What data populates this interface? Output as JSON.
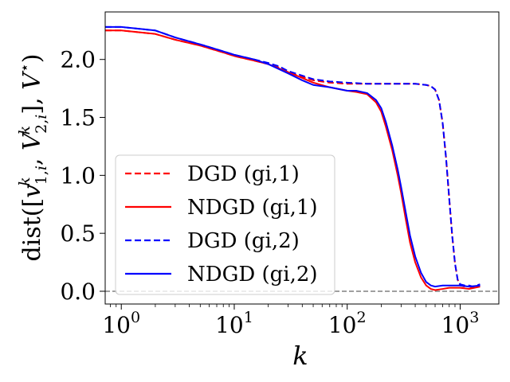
{
  "chart_data": {
    "type": "line",
    "title": "",
    "xlabel": "k",
    "ylabel": "dist([v_{1,i}^k, V_{2,i}^k], V*)",
    "xscale": "log",
    "xlim": [
      0.72,
      2200
    ],
    "ylim": [
      -0.11,
      2.41
    ],
    "xticks": [
      {
        "value": 1,
        "label_base": "10",
        "label_exp": "0"
      },
      {
        "value": 10,
        "label_base": "10",
        "label_exp": "1"
      },
      {
        "value": 100,
        "label_base": "10",
        "label_exp": "2"
      },
      {
        "value": 1000,
        "label_base": "10",
        "label_exp": "3"
      }
    ],
    "yticks": [
      {
        "value": 0.0,
        "label": "0.0"
      },
      {
        "value": 0.5,
        "label": "0.5"
      },
      {
        "value": 1.0,
        "label": "1.0"
      },
      {
        "value": 1.5,
        "label": "1.5"
      },
      {
        "value": 2.0,
        "label": "2.0"
      }
    ],
    "reference_line": {
      "y": 0.0,
      "color": "#808080",
      "style": "dashed"
    },
    "legend": {
      "location": "lower-left"
    },
    "series": [
      {
        "name": "DGD (gi,1)",
        "color": "#ff0000",
        "style": "dashed",
        "x": [
          0.72,
          1,
          2,
          3,
          5,
          8,
          10,
          15,
          20,
          25,
          30,
          40,
          50,
          70,
          100,
          150,
          200,
          300,
          400,
          500,
          550,
          600,
          650,
          700,
          750,
          800,
          850,
          900,
          950,
          1000,
          1100,
          1200,
          1300,
          1500
        ],
        "y": [
          2.25,
          2.25,
          2.22,
          2.17,
          2.12,
          2.06,
          2.03,
          1.99,
          1.96,
          1.93,
          1.89,
          1.85,
          1.82,
          1.8,
          1.79,
          1.79,
          1.79,
          1.79,
          1.79,
          1.78,
          1.77,
          1.74,
          1.65,
          1.45,
          1.15,
          0.8,
          0.48,
          0.24,
          0.1,
          0.05,
          0.04,
          0.04,
          0.03,
          0.05
        ]
      },
      {
        "name": "NDGD (gi,1)",
        "color": "#ff0000",
        "style": "solid",
        "x": [
          0.72,
          1,
          2,
          3,
          5,
          8,
          10,
          15,
          20,
          30,
          40,
          50,
          70,
          100,
          120,
          150,
          180,
          200,
          220,
          250,
          280,
          300,
          330,
          360,
          400,
          450,
          500,
          550,
          600,
          700,
          800,
          1000,
          1200,
          1500
        ],
        "y": [
          2.25,
          2.25,
          2.22,
          2.17,
          2.12,
          2.06,
          2.03,
          1.99,
          1.96,
          1.89,
          1.84,
          1.8,
          1.76,
          1.73,
          1.72,
          1.7,
          1.63,
          1.55,
          1.42,
          1.22,
          1.0,
          0.85,
          0.62,
          0.42,
          0.25,
          0.12,
          0.05,
          0.02,
          0.01,
          0.02,
          0.03,
          0.03,
          0.02,
          0.04
        ]
      },
      {
        "name": "DGD (gi,2)",
        "color": "#0000ff",
        "style": "dashed",
        "x": [
          0.72,
          1,
          2,
          3,
          5,
          8,
          10,
          15,
          20,
          25,
          30,
          40,
          50,
          70,
          100,
          150,
          200,
          300,
          400,
          500,
          550,
          600,
          650,
          700,
          750,
          800,
          850,
          900,
          950,
          1000,
          1100,
          1200,
          1300,
          1500
        ],
        "y": [
          2.28,
          2.28,
          2.25,
          2.19,
          2.13,
          2.07,
          2.04,
          2.0,
          1.97,
          1.94,
          1.9,
          1.86,
          1.83,
          1.81,
          1.8,
          1.79,
          1.79,
          1.79,
          1.79,
          1.78,
          1.77,
          1.74,
          1.65,
          1.45,
          1.15,
          0.8,
          0.48,
          0.24,
          0.1,
          0.06,
          0.05,
          0.05,
          0.04,
          0.06
        ]
      },
      {
        "name": "NDGD (gi,2)",
        "color": "#0000ff",
        "style": "solid",
        "x": [
          0.72,
          1,
          2,
          3,
          5,
          8,
          10,
          15,
          20,
          30,
          40,
          50,
          70,
          100,
          120,
          150,
          180,
          200,
          220,
          250,
          280,
          300,
          330,
          360,
          400,
          450,
          500,
          550,
          600,
          700,
          800,
          1000,
          1200,
          1500
        ],
        "y": [
          2.28,
          2.28,
          2.25,
          2.19,
          2.13,
          2.07,
          2.04,
          2.0,
          1.96,
          1.88,
          1.82,
          1.78,
          1.76,
          1.73,
          1.73,
          1.71,
          1.65,
          1.58,
          1.46,
          1.26,
          1.05,
          0.9,
          0.68,
          0.48,
          0.3,
          0.16,
          0.08,
          0.05,
          0.04,
          0.05,
          0.05,
          0.05,
          0.04,
          0.05
        ]
      }
    ]
  }
}
